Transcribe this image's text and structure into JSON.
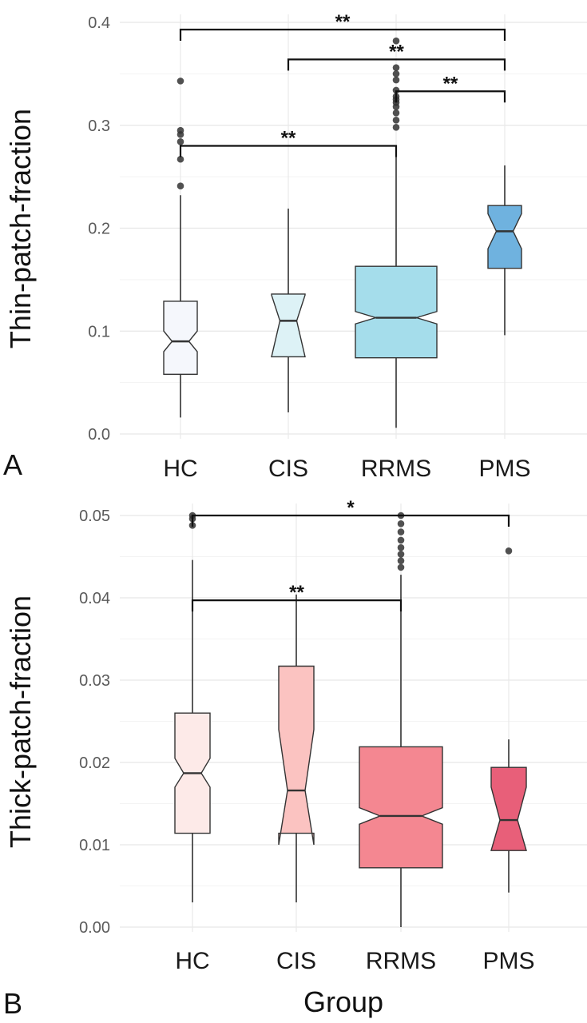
{
  "panels": [
    {
      "label": "A",
      "ylabel": "Thin-patch-fraction"
    },
    {
      "label": "B",
      "ylabel": "Thick-patch-fraction",
      "xlabel": "Group"
    }
  ],
  "chart_data": [
    {
      "type": "boxplot",
      "panel": "A",
      "title": "",
      "xlabel": "",
      "ylabel": "Thin-patch-fraction",
      "ylim": [
        0.0,
        0.4
      ],
      "yticks": [
        "0.0",
        "0.1",
        "0.2",
        "0.3",
        "0.4"
      ],
      "categories": [
        "HC",
        "CIS",
        "RRMS",
        "PMS"
      ],
      "grid": true,
      "notched": true,
      "colors": [
        "#f5f7fc",
        "#ddf2f6",
        "#a5ddeb",
        "#6fb2df"
      ],
      "boxes": [
        {
          "group": "HC",
          "whisker_low": 0.016,
          "q1": 0.058,
          "median": 0.09,
          "q3": 0.129,
          "whisker_high": 0.232,
          "notch": [
            0.08,
            0.1
          ],
          "outliers": [
            0.241,
            0.267,
            0.284,
            0.291,
            0.295,
            0.343
          ]
        },
        {
          "group": "CIS",
          "whisker_low": 0.021,
          "q1": 0.075,
          "median": 0.11,
          "q3": 0.136,
          "whisker_high": 0.219,
          "notch": [
            0.075,
            0.135
          ],
          "outliers": []
        },
        {
          "group": "RRMS",
          "whisker_low": 0.006,
          "q1": 0.074,
          "median": 0.113,
          "q3": 0.163,
          "whisker_high": 0.275,
          "notch": [
            0.107,
            0.119
          ],
          "outliers": [
            0.298,
            0.305,
            0.312,
            0.318,
            0.322,
            0.325,
            0.328,
            0.334,
            0.344,
            0.35,
            0.356,
            0.382
          ]
        },
        {
          "group": "PMS",
          "whisker_low": 0.096,
          "q1": 0.161,
          "median": 0.197,
          "q3": 0.222,
          "whisker_high": 0.261,
          "notch": [
            0.18,
            0.214
          ],
          "outliers": []
        }
      ],
      "significance": [
        {
          "from": "HC",
          "to": "PMS",
          "y": 0.393,
          "label": "**"
        },
        {
          "from": "CIS",
          "to": "PMS",
          "y": 0.364,
          "label": "**"
        },
        {
          "from": "RRMS",
          "to": "PMS",
          "y": 0.333,
          "label": "**"
        },
        {
          "from": "HC",
          "to": "RRMS",
          "y": 0.28,
          "label": "**"
        }
      ]
    },
    {
      "type": "boxplot",
      "panel": "B",
      "title": "",
      "xlabel": "Group",
      "ylabel": "Thick-patch-fraction",
      "ylim": [
        0.0,
        0.05
      ],
      "yticks": [
        "0.00",
        "0.01",
        "0.02",
        "0.03",
        "0.04",
        "0.05"
      ],
      "categories": [
        "HC",
        "CIS",
        "RRMS",
        "PMS"
      ],
      "grid": true,
      "notched": true,
      "colors": [
        "#fdeae8",
        "#fbc3c1",
        "#f48791",
        "#e85f79"
      ],
      "boxes": [
        {
          "group": "HC",
          "whisker_low": 0.003,
          "q1": 0.0114,
          "median": 0.0187,
          "q3": 0.026,
          "whisker_high": 0.0446,
          "notch": [
            0.017,
            0.0205
          ],
          "outliers": [
            0.0488,
            0.0496,
            0.05
          ]
        },
        {
          "group": "CIS",
          "whisker_low": 0.003,
          "q1": 0.0114,
          "median": 0.0166,
          "q3": 0.0317,
          "whisker_high": 0.0404,
          "notch": [
            0.01,
            0.024
          ],
          "outliers": []
        },
        {
          "group": "RRMS",
          "whisker_low": 0.0,
          "q1": 0.0072,
          "median": 0.0135,
          "q3": 0.0219,
          "whisker_high": 0.0428,
          "notch": [
            0.0125,
            0.0145
          ],
          "outliers": [
            0.0437,
            0.0445,
            0.0453,
            0.0461,
            0.047,
            0.048,
            0.049,
            0.05
          ]
        },
        {
          "group": "PMS",
          "whisker_low": 0.0042,
          "q1": 0.0093,
          "median": 0.013,
          "q3": 0.0194,
          "whisker_high": 0.0228,
          "notch": [
            0.0093,
            0.017
          ],
          "outliers": [
            0.0457
          ]
        }
      ],
      "significance": [
        {
          "from": "HC",
          "to": "PMS",
          "y": 0.05,
          "label": "*"
        },
        {
          "from": "HC",
          "to": "RRMS",
          "y": 0.0397,
          "label": "**"
        }
      ]
    }
  ]
}
